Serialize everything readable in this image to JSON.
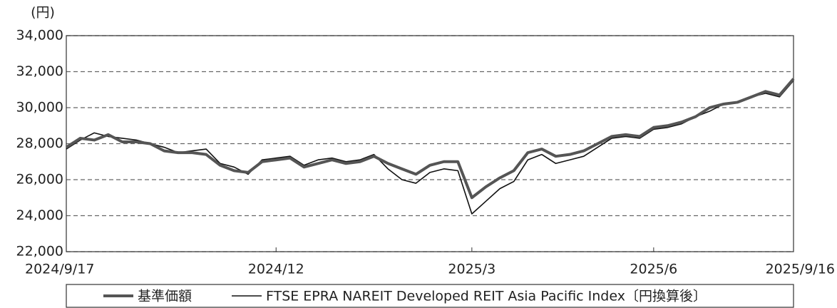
{
  "chart_data": {
    "type": "line",
    "ylabel": "(円)",
    "categories": [
      "2024/9/17",
      null,
      null,
      null,
      null,
      null,
      null,
      null,
      null,
      null,
      null,
      null,
      null,
      null,
      null,
      "2024/12",
      null,
      null,
      null,
      null,
      null,
      null,
      null,
      null,
      null,
      null,
      null,
      null,
      null,
      "2025/3",
      null,
      null,
      null,
      null,
      null,
      null,
      null,
      null,
      null,
      null,
      null,
      null,
      "2025/6",
      null,
      null,
      null,
      null,
      null,
      null,
      null,
      null,
      null,
      "2025/9/16"
    ],
    "series": [
      {
        "name": "基準価額",
        "color": "#555555",
        "values": [
          27800,
          28300,
          28200,
          28500,
          28100,
          28100,
          28000,
          27600,
          27500,
          27500,
          27400,
          26800,
          26500,
          26400,
          27000,
          27100,
          27200,
          26700,
          26900,
          27100,
          26900,
          27000,
          27300,
          26900,
          26600,
          26300,
          26800,
          27000,
          27000,
          25000,
          25600,
          26100,
          26500,
          27500,
          27700,
          27300,
          27400,
          27600,
          28000,
          28400,
          28500,
          28400,
          28900,
          29000,
          29200,
          29500,
          30000,
          30200,
          30300,
          30600,
          30900,
          30700,
          31600
        ]
      },
      {
        "name": "FTSE EPRA NAREIT Developed REIT Asia Pacific Index〔円換算後〕",
        "color": "#111111",
        "values": [
          27700,
          28200,
          28600,
          28400,
          28300,
          28200,
          28000,
          27800,
          27500,
          27600,
          27700,
          26900,
          26700,
          26300,
          27100,
          27200,
          27300,
          26800,
          27100,
          27200,
          27000,
          27100,
          27400,
          26600,
          26000,
          25800,
          26400,
          26600,
          26500,
          24100,
          24800,
          25500,
          25900,
          27100,
          27400,
          26900,
          27100,
          27300,
          27800,
          28300,
          28400,
          28300,
          28800,
          28900,
          29100,
          29500,
          29800,
          30200,
          30300,
          30600,
          30800,
          30600,
          31500
        ]
      }
    ],
    "ylim": [
      22000,
      34000
    ],
    "yticks": [
      {
        "value": 22000,
        "label": "22,000"
      },
      {
        "value": 24000,
        "label": "24,000"
      },
      {
        "value": 26000,
        "label": "26,000"
      },
      {
        "value": 28000,
        "label": "28,000"
      },
      {
        "value": 30000,
        "label": "30,000"
      },
      {
        "value": 32000,
        "label": "32,000"
      },
      {
        "value": 34000,
        "label": "34,000"
      }
    ],
    "grid": true
  }
}
